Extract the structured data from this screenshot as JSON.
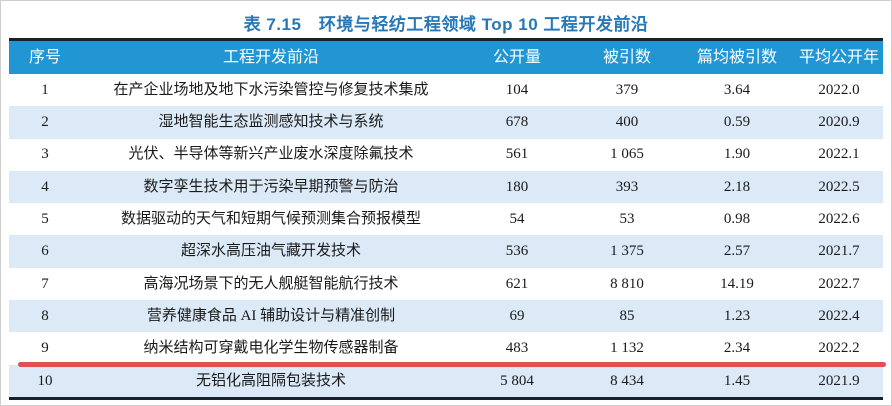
{
  "title": "表 7.15　环境与轻纺工程领域 Top 10 工程开发前沿",
  "colors": {
    "page_bg": "#ffffff",
    "header_bg": "#2196d3",
    "row_alt": "#dce9f7",
    "title_color": "#2878b8",
    "underline": "#e05252",
    "border_dark": "#16212e",
    "text": "#1a1a1a"
  },
  "table": {
    "headers": [
      "序号",
      "工程开发前沿",
      "公开量",
      "被引数",
      "篇均被引数",
      "平均公开年"
    ],
    "rows": [
      {
        "no": "1",
        "frontier": "在产企业场地及地下水污染管控与修复技术集成",
        "pubs": "104",
        "citations": "379",
        "avg_citations": "3.64",
        "avg_year": "2022.0"
      },
      {
        "no": "2",
        "frontier": "湿地智能生态监测感知技术与系统",
        "pubs": "678",
        "citations": "400",
        "avg_citations": "0.59",
        "avg_year": "2020.9"
      },
      {
        "no": "3",
        "frontier": "光伏、半导体等新兴产业废水深度除氟技术",
        "pubs": "561",
        "citations": "1 065",
        "avg_citations": "1.90",
        "avg_year": "2022.1"
      },
      {
        "no": "4",
        "frontier": "数字孪生技术用于污染早期预警与防治",
        "pubs": "180",
        "citations": "393",
        "avg_citations": "2.18",
        "avg_year": "2022.5"
      },
      {
        "no": "5",
        "frontier": "数据驱动的天气和短期气候预测集合预报模型",
        "pubs": "54",
        "citations": "53",
        "avg_citations": "0.98",
        "avg_year": "2022.6"
      },
      {
        "no": "6",
        "frontier": "超深水高压油气藏开发技术",
        "pubs": "536",
        "citations": "1 375",
        "avg_citations": "2.57",
        "avg_year": "2021.7"
      },
      {
        "no": "7",
        "frontier": "高海况场景下的无人舰艇智能航行技术",
        "pubs": "621",
        "citations": "8 810",
        "avg_citations": "14.19",
        "avg_year": "2022.7"
      },
      {
        "no": "8",
        "frontier": "营养健康食品 AI 辅助设计与精准创制",
        "pubs": "69",
        "citations": "85",
        "avg_citations": "1.23",
        "avg_year": "2022.4"
      },
      {
        "no": "9",
        "frontier": "纳米结构可穿戴电化学生物传感器制备",
        "pubs": "483",
        "citations": "1 132",
        "avg_citations": "2.34",
        "avg_year": "2022.2"
      },
      {
        "no": "10",
        "frontier": "无铝化高阻隔包装技术",
        "pubs": "5 804",
        "citations": "8 434",
        "avg_citations": "1.45",
        "avg_year": "2021.9"
      }
    ],
    "annotation": "red-underline-below-row-9"
  }
}
